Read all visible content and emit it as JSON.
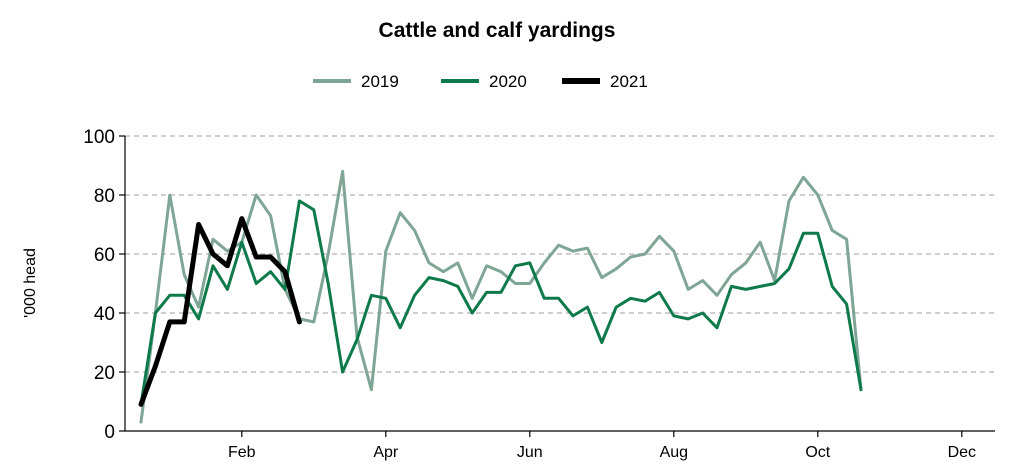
{
  "chart_data": {
    "type": "line",
    "title": "Cattle and calf yardings",
    "ylabel": "'000 head",
    "xlabel": "",
    "ylim": [
      0,
      100
    ],
    "yticks": [
      0,
      20,
      40,
      60,
      80,
      100
    ],
    "xlim": [
      1,
      53
    ],
    "xticks": [
      {
        "label": "Feb",
        "week": 8
      },
      {
        "label": "Apr",
        "week": 18
      },
      {
        "label": "Jun",
        "week": 28
      },
      {
        "label": "Aug",
        "week": 38
      },
      {
        "label": "Oct",
        "week": 48
      },
      {
        "label": "Dec",
        "week": 58
      }
    ],
    "legend_position": "top-center",
    "grid": "horizontal-dashed",
    "series": [
      {
        "name": "2019",
        "color": "#7fa595",
        "width": 3,
        "x": [
          1,
          2,
          3,
          4,
          5,
          6,
          7,
          8,
          9,
          10,
          11,
          12,
          13,
          14,
          15,
          16,
          17,
          18,
          19,
          20,
          21,
          22,
          23,
          24,
          25,
          26,
          27,
          28,
          29,
          30,
          31,
          32,
          33,
          34,
          35,
          36,
          37,
          38,
          39,
          40,
          41,
          42,
          43,
          44,
          45,
          46,
          47,
          48,
          49,
          50,
          51,
          52,
          53
        ],
        "values": [
          3,
          40,
          80,
          53,
          42,
          65,
          61,
          64,
          80,
          73,
          48,
          38,
          37,
          60,
          88,
          32,
          14,
          61,
          74,
          68,
          57,
          54,
          57,
          45,
          56,
          54,
          50,
          50,
          57,
          63,
          61,
          62,
          52,
          55,
          59,
          60,
          66,
          61,
          48,
          51,
          46,
          53,
          57,
          64,
          51,
          78,
          86,
          80,
          68,
          65,
          14,
          null,
          null
        ]
      },
      {
        "name": "2020",
        "color": "#0e7a4a",
        "width": 3,
        "x": [
          1,
          2,
          3,
          4,
          5,
          6,
          7,
          8,
          9,
          10,
          11,
          12,
          13,
          14,
          15,
          16,
          17,
          18,
          19,
          20,
          21,
          22,
          23,
          24,
          25,
          26,
          27,
          28,
          29,
          30,
          31,
          32,
          33,
          34,
          35,
          36,
          37,
          38,
          39,
          40,
          41,
          42,
          43,
          44,
          45,
          46,
          47,
          48,
          49,
          50,
          51,
          52,
          53
        ],
        "values": [
          9,
          40,
          46,
          46,
          38,
          56,
          48,
          64,
          50,
          54,
          48,
          78,
          75,
          50,
          20,
          31,
          46,
          45,
          35,
          46,
          52,
          51,
          49,
          40,
          47,
          47,
          56,
          57,
          45,
          45,
          39,
          42,
          30,
          42,
          45,
          44,
          47,
          39,
          38,
          40,
          35,
          49,
          48,
          49,
          50,
          55,
          67,
          67,
          49,
          43,
          14,
          null,
          null
        ]
      },
      {
        "name": "2021",
        "color": "#000000",
        "width": 5,
        "x": [
          1,
          2,
          3,
          4,
          5,
          6,
          7,
          8,
          9,
          10,
          11,
          12
        ],
        "values": [
          9,
          22,
          37,
          37,
          70,
          60,
          56,
          72,
          59,
          59,
          54,
          37
        ]
      }
    ]
  }
}
